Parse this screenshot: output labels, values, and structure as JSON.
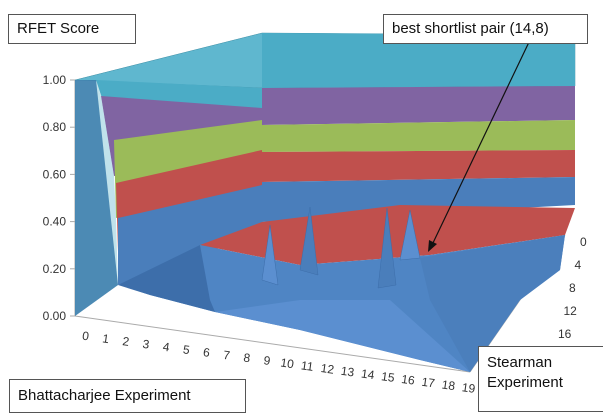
{
  "chart_data": {
    "type": "surface",
    "title": "",
    "zlabel": "RFET Score",
    "xlabel": "Bhattacharjee Experiment",
    "ylabel": "Stearman Experiment",
    "x_ticks": [
      "0",
      "1",
      "2",
      "3",
      "4",
      "5",
      "6",
      "7",
      "8",
      "9",
      "10",
      "11",
      "12",
      "13",
      "14",
      "15",
      "16",
      "17",
      "18",
      "19"
    ],
    "y_ticks": [
      "0",
      "4",
      "8",
      "12",
      "16"
    ],
    "z_ticks": [
      "0.00",
      "0.20",
      "0.40",
      "0.60",
      "0.80",
      "1.00"
    ],
    "zlim": [
      0,
      1
    ],
    "bands": [
      {
        "range": [
          0.0,
          0.2
        ],
        "color": "#4a7ebb"
      },
      {
        "range": [
          0.2,
          0.4
        ],
        "color": "#c0504d"
      },
      {
        "range": [
          0.4,
          0.6
        ],
        "color": "#9bbb59"
      },
      {
        "range": [
          0.6,
          0.8
        ],
        "color": "#8064a2"
      },
      {
        "range": [
          0.8,
          1.0
        ],
        "color": "#4bacc6"
      }
    ],
    "annotation": {
      "text": "best shortlist pair (14,8)",
      "x": 14,
      "y": 8
    },
    "plateau_value": 1.0,
    "floor_value": 0.05
  }
}
